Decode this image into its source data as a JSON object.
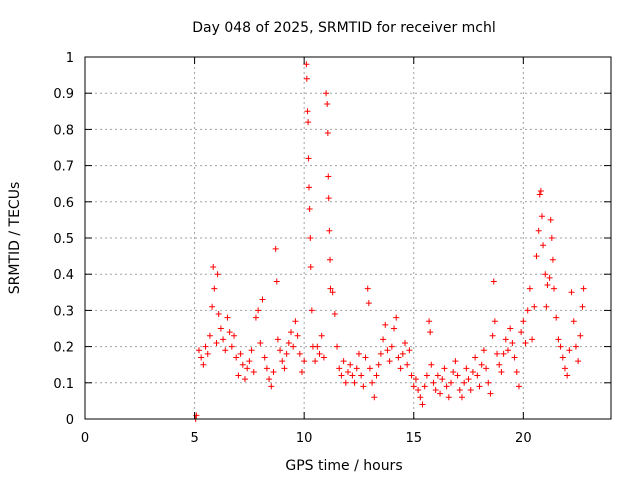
{
  "chart_data": {
    "type": "scatter",
    "title": "Day 048 of 2025, SRMTID for receiver mchl",
    "xlabel": "GPS time / hours",
    "ylabel": "SRMTID / TECUs",
    "xlim": [
      0,
      24
    ],
    "ylim": [
      0,
      1
    ],
    "xticks": [
      0,
      5,
      10,
      15,
      20
    ],
    "yticks": [
      0,
      0.1,
      0.2,
      0.3,
      0.4,
      0.5,
      0.6,
      0.7,
      0.8,
      0.9,
      1
    ],
    "xtick_labels": [
      "0",
      "5",
      "10",
      "15",
      "20"
    ],
    "ytick_labels": [
      "0",
      "0.1",
      "0.2",
      "0.3",
      "0.4",
      "0.5",
      "0.6",
      "0.7",
      "0.8",
      "0.9",
      "1"
    ],
    "grid": true,
    "marker": "+",
    "color": "#ff0000",
    "series": [
      {
        "name": "SRMTID",
        "points": [
          [
            5.05,
            0.0
          ],
          [
            5.08,
            0.01
          ],
          [
            5.2,
            0.19
          ],
          [
            5.3,
            0.17
          ],
          [
            5.4,
            0.15
          ],
          [
            5.5,
            0.2
          ],
          [
            5.6,
            0.18
          ],
          [
            5.7,
            0.23
          ],
          [
            5.8,
            0.31
          ],
          [
            5.85,
            0.42
          ],
          [
            5.9,
            0.36
          ],
          [
            6.0,
            0.21
          ],
          [
            6.05,
            0.4
          ],
          [
            6.1,
            0.29
          ],
          [
            6.2,
            0.25
          ],
          [
            6.3,
            0.22
          ],
          [
            6.4,
            0.19
          ],
          [
            6.5,
            0.28
          ],
          [
            6.6,
            0.24
          ],
          [
            6.7,
            0.2
          ],
          [
            6.8,
            0.23
          ],
          [
            6.9,
            0.17
          ],
          [
            7.0,
            0.12
          ],
          [
            7.1,
            0.18
          ],
          [
            7.2,
            0.15
          ],
          [
            7.3,
            0.11
          ],
          [
            7.4,
            0.14
          ],
          [
            7.5,
            0.16
          ],
          [
            7.6,
            0.19
          ],
          [
            7.7,
            0.13
          ],
          [
            7.8,
            0.28
          ],
          [
            7.9,
            0.3
          ],
          [
            8.0,
            0.21
          ],
          [
            8.1,
            0.33
          ],
          [
            8.2,
            0.17
          ],
          [
            8.3,
            0.14
          ],
          [
            8.4,
            0.11
          ],
          [
            8.5,
            0.09
          ],
          [
            8.6,
            0.13
          ],
          [
            8.7,
            0.47
          ],
          [
            8.75,
            0.38
          ],
          [
            8.8,
            0.22
          ],
          [
            8.9,
            0.19
          ],
          [
            9.0,
            0.16
          ],
          [
            9.1,
            0.14
          ],
          [
            9.2,
            0.18
          ],
          [
            9.3,
            0.21
          ],
          [
            9.4,
            0.24
          ],
          [
            9.5,
            0.2
          ],
          [
            9.6,
            0.27
          ],
          [
            9.7,
            0.23
          ],
          [
            9.8,
            0.18
          ],
          [
            9.9,
            0.13
          ],
          [
            10.0,
            0.16
          ],
          [
            10.1,
            0.98
          ],
          [
            10.12,
            0.94
          ],
          [
            10.15,
            0.85
          ],
          [
            10.18,
            0.82
          ],
          [
            10.2,
            0.72
          ],
          [
            10.22,
            0.64
          ],
          [
            10.25,
            0.58
          ],
          [
            10.28,
            0.5
          ],
          [
            10.3,
            0.42
          ],
          [
            10.35,
            0.3
          ],
          [
            10.4,
            0.2
          ],
          [
            10.5,
            0.16
          ],
          [
            10.6,
            0.2
          ],
          [
            10.7,
            0.18
          ],
          [
            10.8,
            0.23
          ],
          [
            10.9,
            0.17
          ],
          [
            11.0,
            0.9
          ],
          [
            11.05,
            0.87
          ],
          [
            11.08,
            0.79
          ],
          [
            11.1,
            0.67
          ],
          [
            11.12,
            0.61
          ],
          [
            11.15,
            0.52
          ],
          [
            11.18,
            0.44
          ],
          [
            11.2,
            0.36
          ],
          [
            11.3,
            0.35
          ],
          [
            11.4,
            0.29
          ],
          [
            11.5,
            0.2
          ],
          [
            11.6,
            0.14
          ],
          [
            11.7,
            0.12
          ],
          [
            11.8,
            0.16
          ],
          [
            11.9,
            0.1
          ],
          [
            12.0,
            0.13
          ],
          [
            12.1,
            0.15
          ],
          [
            12.2,
            0.12
          ],
          [
            12.3,
            0.1
          ],
          [
            12.4,
            0.14
          ],
          [
            12.5,
            0.18
          ],
          [
            12.6,
            0.12
          ],
          [
            12.7,
            0.09
          ],
          [
            12.8,
            0.17
          ],
          [
            12.9,
            0.36
          ],
          [
            12.95,
            0.32
          ],
          [
            13.0,
            0.14
          ],
          [
            13.1,
            0.1
          ],
          [
            13.2,
            0.06
          ],
          [
            13.3,
            0.12
          ],
          [
            13.4,
            0.15
          ],
          [
            13.5,
            0.18
          ],
          [
            13.6,
            0.22
          ],
          [
            13.7,
            0.26
          ],
          [
            13.8,
            0.19
          ],
          [
            13.9,
            0.16
          ],
          [
            14.0,
            0.2
          ],
          [
            14.1,
            0.25
          ],
          [
            14.2,
            0.28
          ],
          [
            14.3,
            0.17
          ],
          [
            14.4,
            0.14
          ],
          [
            14.5,
            0.18
          ],
          [
            14.6,
            0.21
          ],
          [
            14.7,
            0.15
          ],
          [
            14.8,
            0.19
          ],
          [
            14.9,
            0.12
          ],
          [
            15.0,
            0.09
          ],
          [
            15.1,
            0.11
          ],
          [
            15.2,
            0.08
          ],
          [
            15.3,
            0.06
          ],
          [
            15.4,
            0.04
          ],
          [
            15.5,
            0.09
          ],
          [
            15.6,
            0.12
          ],
          [
            15.7,
            0.27
          ],
          [
            15.75,
            0.24
          ],
          [
            15.8,
            0.15
          ],
          [
            15.9,
            0.1
          ],
          [
            16.0,
            0.08
          ],
          [
            16.1,
            0.12
          ],
          [
            16.2,
            0.07
          ],
          [
            16.3,
            0.11
          ],
          [
            16.4,
            0.14
          ],
          [
            16.5,
            0.09
          ],
          [
            16.6,
            0.06
          ],
          [
            16.7,
            0.1
          ],
          [
            16.8,
            0.13
          ],
          [
            16.9,
            0.16
          ],
          [
            17.0,
            0.12
          ],
          [
            17.1,
            0.08
          ],
          [
            17.2,
            0.06
          ],
          [
            17.3,
            0.1
          ],
          [
            17.4,
            0.14
          ],
          [
            17.5,
            0.11
          ],
          [
            17.6,
            0.08
          ],
          [
            17.7,
            0.13
          ],
          [
            17.8,
            0.17
          ],
          [
            17.9,
            0.12
          ],
          [
            18.0,
            0.09
          ],
          [
            18.1,
            0.15
          ],
          [
            18.2,
            0.19
          ],
          [
            18.3,
            0.14
          ],
          [
            18.4,
            0.1
          ],
          [
            18.5,
            0.07
          ],
          [
            18.6,
            0.23
          ],
          [
            18.65,
            0.38
          ],
          [
            18.7,
            0.27
          ],
          [
            18.8,
            0.18
          ],
          [
            18.9,
            0.15
          ],
          [
            19.0,
            0.13
          ],
          [
            19.1,
            0.18
          ],
          [
            19.2,
            0.22
          ],
          [
            19.3,
            0.19
          ],
          [
            19.4,
            0.25
          ],
          [
            19.5,
            0.21
          ],
          [
            19.6,
            0.17
          ],
          [
            19.7,
            0.13
          ],
          [
            19.8,
            0.09
          ],
          [
            19.9,
            0.24
          ],
          [
            20.0,
            0.27
          ],
          [
            20.1,
            0.21
          ],
          [
            20.2,
            0.3
          ],
          [
            20.3,
            0.36
          ],
          [
            20.4,
            0.22
          ],
          [
            20.5,
            0.31
          ],
          [
            20.6,
            0.45
          ],
          [
            20.7,
            0.52
          ],
          [
            20.75,
            0.62
          ],
          [
            20.8,
            0.63
          ],
          [
            20.85,
            0.56
          ],
          [
            20.9,
            0.48
          ],
          [
            21.0,
            0.4
          ],
          [
            21.05,
            0.31
          ],
          [
            21.1,
            0.37
          ],
          [
            21.2,
            0.39
          ],
          [
            21.25,
            0.55
          ],
          [
            21.3,
            0.5
          ],
          [
            21.35,
            0.44
          ],
          [
            21.4,
            0.36
          ],
          [
            21.5,
            0.28
          ],
          [
            21.6,
            0.22
          ],
          [
            21.7,
            0.2
          ],
          [
            21.8,
            0.17
          ],
          [
            21.9,
            0.14
          ],
          [
            22.0,
            0.12
          ],
          [
            22.1,
            0.19
          ],
          [
            22.2,
            0.35
          ],
          [
            22.3,
            0.27
          ],
          [
            22.4,
            0.2
          ],
          [
            22.5,
            0.16
          ],
          [
            22.6,
            0.23
          ],
          [
            22.7,
            0.31
          ],
          [
            22.75,
            0.36
          ]
        ]
      }
    ]
  }
}
